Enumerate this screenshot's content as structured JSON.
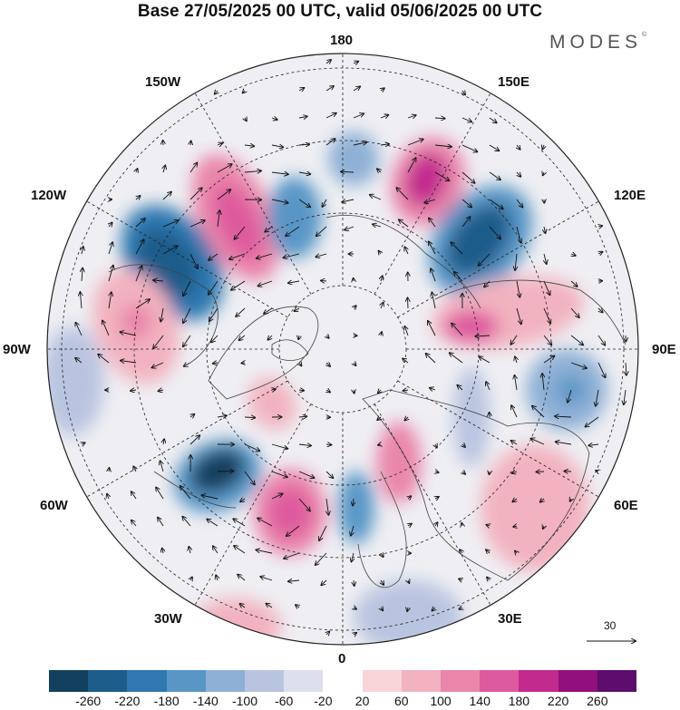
{
  "header": {
    "title": "Base 27/05/2025 00 UTC, valid 05/06/2025 00 UTC",
    "brand": "MODES"
  },
  "map": {
    "projection": "north polar stereographic",
    "longitude_labels": {
      "top": "180",
      "bottom": "0",
      "left": "90W",
      "right": "90E",
      "upper_left": "150W",
      "upper_right": "150E",
      "left_upper": "120W",
      "right_upper": "120E",
      "left_lower": "60W",
      "right_lower": "60E",
      "lower_left": "30W",
      "lower_right": "30E"
    },
    "vector_reference": "30",
    "colors": {
      "graticule": "#222222",
      "coast": "#444444",
      "vector": "#111111"
    }
  },
  "colorbar": {
    "ticks": [
      "-260",
      "-220",
      "-180",
      "-140",
      "-100",
      "-60",
      "-20",
      "20",
      "60",
      "100",
      "140",
      "180",
      "220",
      "260"
    ],
    "colors": [
      "#12405e",
      "#1b5c8a",
      "#2f78b0",
      "#5996c6",
      "#8eb0d6",
      "#b9c4e0",
      "#dddfef",
      "#ffffff",
      "#f8d6d8",
      "#f2b2c0",
      "#ea86aa",
      "#de5a9e",
      "#c22a8e",
      "#92107e",
      "#5c0d6e"
    ]
  }
}
